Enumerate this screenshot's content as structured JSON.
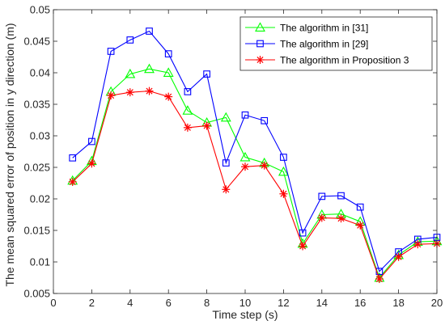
{
  "chart_data": {
    "type": "line",
    "title": "",
    "xlabel": "Time step (s)",
    "ylabel": "The mean squared error of position in y direction (m)",
    "xlim": [
      0,
      20
    ],
    "ylim": [
      0.005,
      0.05
    ],
    "xticks": [
      0,
      2,
      4,
      6,
      8,
      10,
      12,
      14,
      16,
      18,
      20
    ],
    "yticks": [
      0.005,
      0.01,
      0.015,
      0.02,
      0.025,
      0.03,
      0.035,
      0.04,
      0.045,
      0.05
    ],
    "ytick_labels": [
      "0.005",
      "0.01",
      "0.015",
      "0.02",
      "0.025",
      "0.03",
      "0.035",
      "0.04",
      "0.045",
      "0.05"
    ],
    "grid": false,
    "legend_position": "top-right",
    "x": [
      1,
      2,
      3,
      4,
      5,
      6,
      7,
      8,
      9,
      10,
      11,
      12,
      13,
      14,
      15,
      16,
      17,
      18,
      19,
      20
    ],
    "series": [
      {
        "name": "The algorithm in [31]",
        "color": "#00ff00",
        "marker": "triangle",
        "values": [
          0.0229,
          0.026,
          0.037,
          0.0398,
          0.0406,
          0.04,
          0.034,
          0.0321,
          0.0329,
          0.0266,
          0.0257,
          0.0243,
          0.0129,
          0.0175,
          0.0176,
          0.0164,
          0.0075,
          0.0111,
          0.0132,
          0.0133
        ]
      },
      {
        "name": "The algorithm in [29]",
        "color": "#0000ff",
        "marker": "square",
        "values": [
          0.0265,
          0.0291,
          0.0434,
          0.0452,
          0.0466,
          0.043,
          0.037,
          0.0398,
          0.0257,
          0.0333,
          0.0324,
          0.0266,
          0.0146,
          0.0204,
          0.0205,
          0.0187,
          0.0085,
          0.0116,
          0.0136,
          0.0139
        ]
      },
      {
        "name": "The algorithm in Proposition 3",
        "color": "#ff0000",
        "marker": "asterisk",
        "values": [
          0.0227,
          0.0256,
          0.0364,
          0.0369,
          0.0371,
          0.0362,
          0.0313,
          0.0316,
          0.0215,
          0.0251,
          0.0253,
          0.0208,
          0.0125,
          0.017,
          0.0169,
          0.0158,
          0.0073,
          0.0108,
          0.0128,
          0.0129
        ]
      }
    ]
  }
}
